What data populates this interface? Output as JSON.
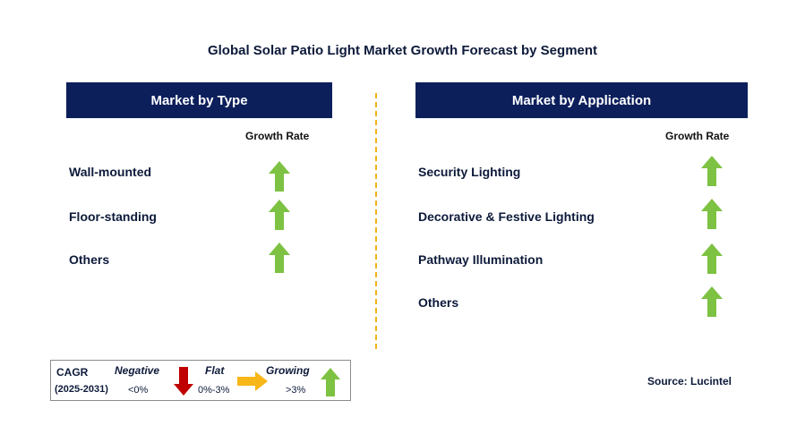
{
  "title": "Global Solar Patio Light Market Growth Forecast by Segment",
  "colors": {
    "header_bg": "#0c1f5b",
    "growing_arrow": "#7dc242",
    "flat_arrow": "#f7b718",
    "negative_arrow": "#c00000",
    "divider": "#f2b21a"
  },
  "left_panel": {
    "header": "Market by Type",
    "growth_rate_label": "Growth Rate",
    "rows": [
      {
        "label": "Wall-mounted",
        "trend": "growing"
      },
      {
        "label": "Floor-standing",
        "trend": "growing"
      },
      {
        "label": "Others",
        "trend": "growing"
      }
    ]
  },
  "right_panel": {
    "header": "Market by Application",
    "growth_rate_label": "Growth Rate",
    "rows": [
      {
        "label": "Security Lighting",
        "trend": "growing"
      },
      {
        "label": "Decorative & Festive Lighting",
        "trend": "growing"
      },
      {
        "label": "Pathway Illumination",
        "trend": "growing"
      },
      {
        "label": "Others",
        "trend": "growing"
      }
    ]
  },
  "legend": {
    "cagr_label": "CAGR",
    "years": "(2025-2031)",
    "negative": {
      "label": "Negative",
      "range": "<0%",
      "icon": "down-arrow-icon"
    },
    "flat": {
      "label": "Flat",
      "range": "0%-3%",
      "icon": "right-arrow-icon"
    },
    "growing": {
      "label": "Growing",
      "range": ">3%",
      "icon": "up-arrow-icon"
    }
  },
  "source": "Source: Lucintel"
}
